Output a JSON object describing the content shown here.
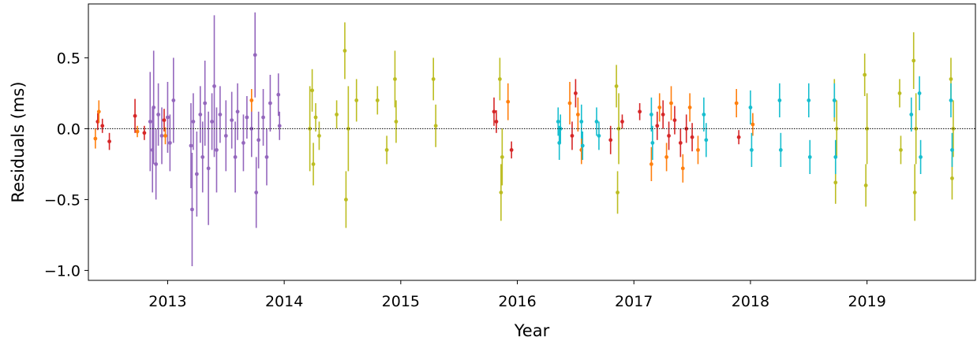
{
  "chart_data": {
    "type": "scatter",
    "xlabel": "Year",
    "ylabel": "Residuals (ms)",
    "xlim": [
      2012.32,
      2019.93
    ],
    "ylim": [
      -1.07,
      0.88
    ],
    "x_ticks": [
      {
        "value": 2013,
        "label": "2013"
      },
      {
        "value": 2014,
        "label": "2014"
      },
      {
        "value": 2015,
        "label": "2015"
      },
      {
        "value": 2016,
        "label": "2016"
      },
      {
        "value": 2017,
        "label": "2017"
      },
      {
        "value": 2018,
        "label": "2018"
      },
      {
        "value": 2019,
        "label": "2019"
      }
    ],
    "y_ticks": [
      {
        "value": 0.5,
        "label": "0.5"
      },
      {
        "value": 0.0,
        "label": "0.0"
      },
      {
        "value": -0.5,
        "label": "−0.5"
      },
      {
        "value": -1.0,
        "label": "−1.0"
      }
    ],
    "zero_line": {
      "y": 0.0,
      "style": "dotted",
      "color": "#000000"
    },
    "grid": false,
    "legend": "none",
    "series": [
      {
        "color": "#9467bd",
        "points": [
          {
            "x": 2012.85,
            "y": 0.05,
            "err": 0.35
          },
          {
            "x": 2012.87,
            "y": -0.15,
            "err": 0.3
          },
          {
            "x": 2012.88,
            "y": 0.15,
            "err": 0.4
          },
          {
            "x": 2012.9,
            "y": -0.25,
            "err": 0.25
          },
          {
            "x": 2012.92,
            "y": 0.1,
            "err": 0.22
          },
          {
            "x": 2012.95,
            "y": -0.05,
            "err": 0.2
          },
          {
            "x": 2013.0,
            "y": 0.08,
            "err": 0.25
          },
          {
            "x": 2013.02,
            "y": -0.1,
            "err": 0.2
          },
          {
            "x": 2013.05,
            "y": 0.2,
            "err": 0.3
          },
          {
            "x": 2013.2,
            "y": -0.12,
            "err": 0.3
          },
          {
            "x": 2013.21,
            "y": -0.57,
            "err": 0.4
          },
          {
            "x": 2013.22,
            "y": 0.05,
            "err": 0.2
          },
          {
            "x": 2013.25,
            "y": -0.32,
            "err": 0.3
          },
          {
            "x": 2013.28,
            "y": 0.1,
            "err": 0.2
          },
          {
            "x": 2013.3,
            "y": -0.2,
            "err": 0.25
          },
          {
            "x": 2013.32,
            "y": 0.18,
            "err": 0.3
          },
          {
            "x": 2013.35,
            "y": -0.28,
            "err": 0.4
          },
          {
            "x": 2013.38,
            "y": 0.05,
            "err": 0.2
          },
          {
            "x": 2013.4,
            "y": 0.3,
            "err": 0.5
          },
          {
            "x": 2013.42,
            "y": -0.15,
            "err": 0.3
          },
          {
            "x": 2013.45,
            "y": 0.1,
            "err": 0.2
          },
          {
            "x": 2013.5,
            "y": -0.05,
            "err": 0.25
          },
          {
            "x": 2013.55,
            "y": 0.06,
            "err": 0.2
          },
          {
            "x": 2013.58,
            "y": -0.2,
            "err": 0.25
          },
          {
            "x": 2013.6,
            "y": 0.12,
            "err": 0.2
          },
          {
            "x": 2013.65,
            "y": -0.1,
            "err": 0.2
          },
          {
            "x": 2013.68,
            "y": 0.08,
            "err": 0.15
          },
          {
            "x": 2013.72,
            "y": 0.0,
            "err": 0.2
          },
          {
            "x": 2013.75,
            "y": 0.52,
            "err": 0.3
          },
          {
            "x": 2013.76,
            "y": -0.45,
            "err": 0.25
          },
          {
            "x": 2013.78,
            "y": -0.08,
            "err": 0.2
          },
          {
            "x": 2013.82,
            "y": 0.08,
            "err": 0.2
          },
          {
            "x": 2013.85,
            "y": -0.2,
            "err": 0.2
          },
          {
            "x": 2013.88,
            "y": 0.18,
            "err": 0.2
          },
          {
            "x": 2013.95,
            "y": 0.24,
            "err": 0.15
          },
          {
            "x": 2013.96,
            "y": 0.02,
            "err": 0.1
          }
        ]
      },
      {
        "color": "#d62728",
        "points": [
          {
            "x": 2012.4,
            "y": 0.05,
            "err": 0.06
          },
          {
            "x": 2012.44,
            "y": 0.02,
            "err": 0.05
          },
          {
            "x": 2012.5,
            "y": -0.09,
            "err": 0.06
          },
          {
            "x": 2012.72,
            "y": 0.09,
            "err": 0.12
          },
          {
            "x": 2012.8,
            "y": -0.03,
            "err": 0.05
          },
          {
            "x": 2012.97,
            "y": 0.06,
            "err": 0.08
          },
          {
            "x": 2015.8,
            "y": 0.12,
            "err": 0.1
          },
          {
            "x": 2015.82,
            "y": 0.05,
            "err": 0.08
          },
          {
            "x": 2015.95,
            "y": -0.15,
            "err": 0.06
          },
          {
            "x": 2016.47,
            "y": -0.05,
            "err": 0.1
          },
          {
            "x": 2016.5,
            "y": 0.25,
            "err": 0.1
          },
          {
            "x": 2016.8,
            "y": -0.08,
            "err": 0.1
          },
          {
            "x": 2016.9,
            "y": 0.05,
            "err": 0.05
          },
          {
            "x": 2017.05,
            "y": 0.12,
            "err": 0.06
          },
          {
            "x": 2017.2,
            "y": 0.02,
            "err": 0.1
          },
          {
            "x": 2017.25,
            "y": 0.1,
            "err": 0.1
          },
          {
            "x": 2017.3,
            "y": -0.05,
            "err": 0.1
          },
          {
            "x": 2017.35,
            "y": 0.06,
            "err": 0.1
          },
          {
            "x": 2017.4,
            "y": -0.1,
            "err": 0.1
          },
          {
            "x": 2017.45,
            "y": 0.0,
            "err": 0.1
          },
          {
            "x": 2017.5,
            "y": -0.06,
            "err": 0.1
          },
          {
            "x": 2017.9,
            "y": -0.06,
            "err": 0.05
          }
        ]
      },
      {
        "color": "#ff7f0e",
        "points": [
          {
            "x": 2012.38,
            "y": -0.07,
            "err": 0.07
          },
          {
            "x": 2012.41,
            "y": 0.12,
            "err": 0.08
          },
          {
            "x": 2012.74,
            "y": -0.02,
            "err": 0.04
          },
          {
            "x": 2012.98,
            "y": -0.05,
            "err": 0.06
          },
          {
            "x": 2013.72,
            "y": 0.2,
            "err": 0.08
          },
          {
            "x": 2015.92,
            "y": 0.19,
            "err": 0.13
          },
          {
            "x": 2016.45,
            "y": 0.18,
            "err": 0.15
          },
          {
            "x": 2016.52,
            "y": 0.1,
            "err": 0.12
          },
          {
            "x": 2016.55,
            "y": -0.15,
            "err": 0.1
          },
          {
            "x": 2017.15,
            "y": -0.25,
            "err": 0.12
          },
          {
            "x": 2017.22,
            "y": 0.15,
            "err": 0.1
          },
          {
            "x": 2017.28,
            "y": -0.2,
            "err": 0.1
          },
          {
            "x": 2017.32,
            "y": 0.18,
            "err": 0.12
          },
          {
            "x": 2017.42,
            "y": -0.28,
            "err": 0.1
          },
          {
            "x": 2017.48,
            "y": 0.15,
            "err": 0.1
          },
          {
            "x": 2017.55,
            "y": -0.15,
            "err": 0.1
          },
          {
            "x": 2017.88,
            "y": 0.18,
            "err": 0.1
          },
          {
            "x": 2018.02,
            "y": 0.03,
            "err": 0.08
          }
        ]
      },
      {
        "color": "#bcbd22",
        "points": [
          {
            "x": 2014.22,
            "y": 0.0,
            "err": 0.3
          },
          {
            "x": 2014.24,
            "y": 0.27,
            "err": 0.15
          },
          {
            "x": 2014.25,
            "y": -0.25,
            "err": 0.15
          },
          {
            "x": 2014.27,
            "y": 0.08,
            "err": 0.1
          },
          {
            "x": 2014.3,
            "y": -0.05,
            "err": 0.1
          },
          {
            "x": 2014.45,
            "y": 0.1,
            "err": 0.1
          },
          {
            "x": 2014.52,
            "y": 0.55,
            "err": 0.2
          },
          {
            "x": 2014.53,
            "y": -0.5,
            "err": 0.2
          },
          {
            "x": 2014.55,
            "y": 0.0,
            "err": 0.3
          },
          {
            "x": 2014.62,
            "y": 0.2,
            "err": 0.15
          },
          {
            "x": 2014.8,
            "y": 0.2,
            "err": 0.1
          },
          {
            "x": 2014.88,
            "y": -0.15,
            "err": 0.1
          },
          {
            "x": 2014.95,
            "y": 0.35,
            "err": 0.2
          },
          {
            "x": 2014.96,
            "y": 0.05,
            "err": 0.15
          },
          {
            "x": 2015.28,
            "y": 0.35,
            "err": 0.15
          },
          {
            "x": 2015.3,
            "y": 0.02,
            "err": 0.15
          },
          {
            "x": 2015.85,
            "y": 0.35,
            "err": 0.15
          },
          {
            "x": 2015.86,
            "y": -0.45,
            "err": 0.2
          },
          {
            "x": 2015.87,
            "y": -0.2,
            "err": 0.2
          },
          {
            "x": 2016.85,
            "y": 0.3,
            "err": 0.15
          },
          {
            "x": 2016.86,
            "y": -0.45,
            "err": 0.15
          },
          {
            "x": 2016.87,
            "y": 0.0,
            "err": 0.25
          },
          {
            "x": 2018.72,
            "y": 0.2,
            "err": 0.15
          },
          {
            "x": 2018.73,
            "y": -0.38,
            "err": 0.15
          },
          {
            "x": 2018.74,
            "y": 0.0,
            "err": 0.2
          },
          {
            "x": 2018.98,
            "y": 0.38,
            "err": 0.15
          },
          {
            "x": 2018.99,
            "y": -0.4,
            "err": 0.15
          },
          {
            "x": 2019.0,
            "y": 0.0,
            "err": 0.25
          },
          {
            "x": 2019.28,
            "y": 0.25,
            "err": 0.1
          },
          {
            "x": 2019.29,
            "y": -0.15,
            "err": 0.1
          },
          {
            "x": 2019.4,
            "y": 0.48,
            "err": 0.2
          },
          {
            "x": 2019.41,
            "y": -0.45,
            "err": 0.2
          },
          {
            "x": 2019.42,
            "y": 0.0,
            "err": 0.25
          },
          {
            "x": 2019.72,
            "y": 0.35,
            "err": 0.15
          },
          {
            "x": 2019.73,
            "y": -0.35,
            "err": 0.15
          },
          {
            "x": 2019.74,
            "y": 0.0,
            "err": 0.2
          }
        ]
      },
      {
        "color": "#17becf",
        "points": [
          {
            "x": 2016.35,
            "y": 0.05,
            "err": 0.1
          },
          {
            "x": 2016.36,
            "y": -0.1,
            "err": 0.12
          },
          {
            "x": 2016.37,
            "y": 0.0,
            "err": 0.1
          },
          {
            "x": 2016.55,
            "y": 0.05,
            "err": 0.12
          },
          {
            "x": 2016.56,
            "y": -0.12,
            "err": 0.1
          },
          {
            "x": 2016.68,
            "y": 0.05,
            "err": 0.1
          },
          {
            "x": 2016.7,
            "y": -0.05,
            "err": 0.1
          },
          {
            "x": 2017.15,
            "y": 0.1,
            "err": 0.12
          },
          {
            "x": 2017.16,
            "y": -0.1,
            "err": 0.12
          },
          {
            "x": 2017.6,
            "y": 0.1,
            "err": 0.12
          },
          {
            "x": 2017.62,
            "y": -0.08,
            "err": 0.12
          },
          {
            "x": 2018.0,
            "y": 0.15,
            "err": 0.12
          },
          {
            "x": 2018.01,
            "y": -0.15,
            "err": 0.12
          },
          {
            "x": 2018.25,
            "y": 0.2,
            "err": 0.12
          },
          {
            "x": 2018.26,
            "y": -0.15,
            "err": 0.12
          },
          {
            "x": 2018.5,
            "y": 0.2,
            "err": 0.12
          },
          {
            "x": 2018.51,
            "y": -0.2,
            "err": 0.12
          },
          {
            "x": 2018.72,
            "y": 0.2,
            "err": 0.12
          },
          {
            "x": 2018.73,
            "y": -0.2,
            "err": 0.12
          },
          {
            "x": 2019.38,
            "y": 0.1,
            "err": 0.12
          },
          {
            "x": 2019.45,
            "y": 0.25,
            "err": 0.12
          },
          {
            "x": 2019.46,
            "y": -0.2,
            "err": 0.12
          },
          {
            "x": 2019.72,
            "y": 0.2,
            "err": 0.12
          },
          {
            "x": 2019.73,
            "y": -0.15,
            "err": 0.12
          }
        ]
      }
    ]
  }
}
